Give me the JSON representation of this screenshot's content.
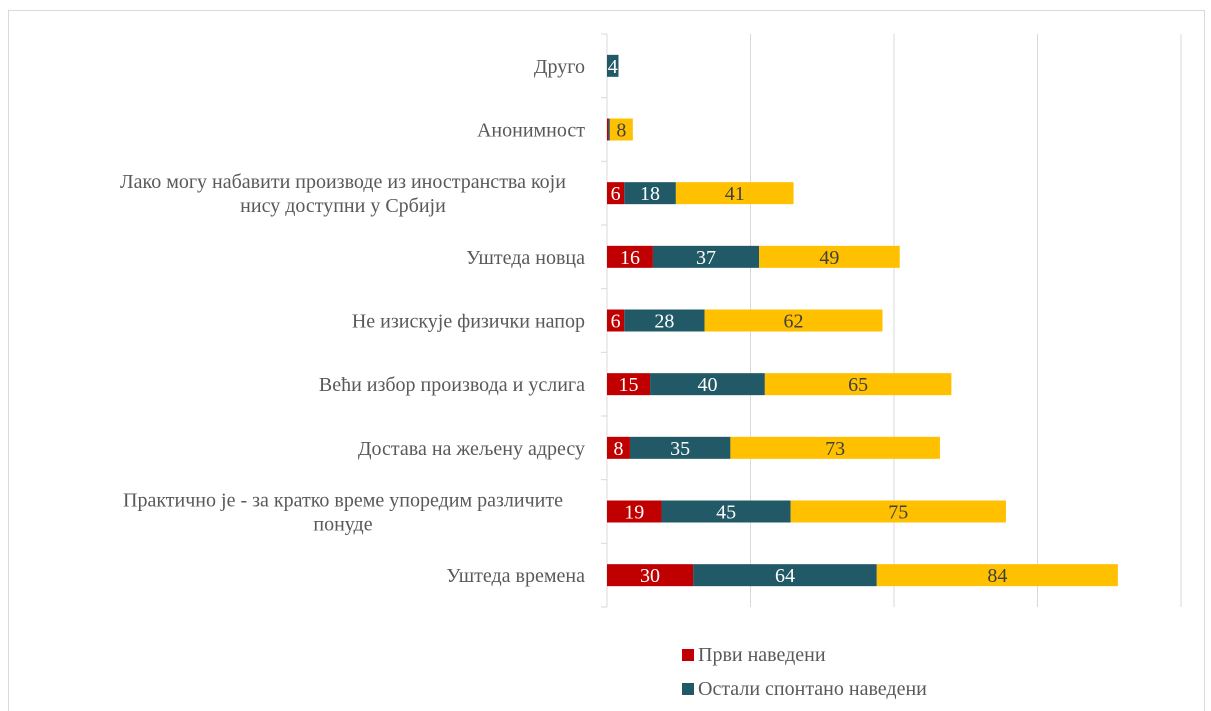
{
  "chart_data": {
    "type": "bar",
    "orientation": "horizontal",
    "stacked": true,
    "categories": [
      "Друго",
      "Анонимност",
      "Лако могу набавити производе из иностранства који нису доступни у Србији",
      "Уштеда новца",
      "Не изискује физички напор",
      "Већи избор производа и услига",
      "Достава на жељену адресу",
      "Практично је - за кратко време упоредим различите понуде",
      "Уштеда времена"
    ],
    "category_lines": [
      [
        "Друго"
      ],
      [
        "Анонимност"
      ],
      [
        "Лако могу набавити производе из иностранства који",
        "нису доступни у Србији"
      ],
      [
        "Уштеда новца"
      ],
      [
        "Не изискује физички напор"
      ],
      [
        "Већи избор производа и услига"
      ],
      [
        "Достава на жељену адресу"
      ],
      [
        "Практично је - за кратко време упоредим различите",
        "понуде"
      ],
      [
        "Уштеда времена"
      ]
    ],
    "series": [
      {
        "name": "Први наведени",
        "color": "#c00000",
        "label_color": "#ffffff",
        "values": [
          0,
          0.5,
          6,
          16,
          6,
          15,
          8,
          19,
          30
        ],
        "labels": [
          "",
          "",
          "6",
          "16",
          "6",
          "15",
          "8",
          "19",
          "30"
        ]
      },
      {
        "name": "Остали спонтано наведени",
        "color": "#215967",
        "label_color": "#ffffff",
        "values": [
          4,
          0.5,
          18,
          37,
          28,
          40,
          35,
          45,
          64
        ],
        "labels": [
          "4",
          "",
          "18",
          "37",
          "28",
          "40",
          "35",
          "45",
          "64"
        ]
      },
      {
        "name": "",
        "color": "#ffc000",
        "label_color": "#404040",
        "values": [
          0,
          8,
          41,
          49,
          62,
          65,
          73,
          75,
          84
        ],
        "labels": [
          "",
          "8",
          "41",
          "49",
          "62",
          "65",
          "73",
          "75",
          "84"
        ]
      }
    ],
    "xlim": [
      0,
      200
    ],
    "grid": true,
    "legend_position": "bottom",
    "legend_entries": [
      0,
      1
    ]
  }
}
